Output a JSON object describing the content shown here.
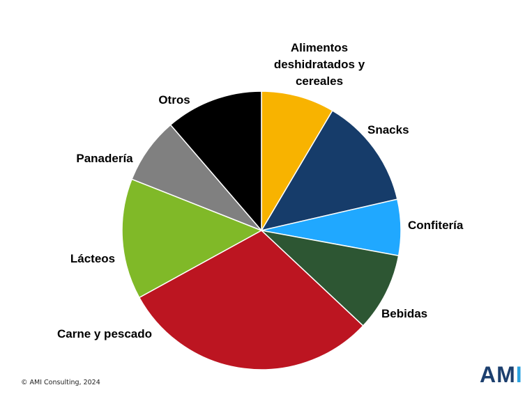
{
  "chart_data": {
    "type": "pie",
    "title": "",
    "start_angle_deg": 0,
    "direction": "clockwise",
    "slices": [
      {
        "label_lines": [
          "Alimentos",
          "deshidratados y",
          "cereales"
        ],
        "value": 8.5,
        "color": "#f8b300"
      },
      {
        "label_lines": [
          "Snacks"
        ],
        "value": 12.9,
        "color": "#163c6a"
      },
      {
        "label_lines": [
          "Confitería"
        ],
        "value": 6.5,
        "color": "#20a8ff"
      },
      {
        "label_lines": [
          "Bebidas"
        ],
        "value": 9.1,
        "color": "#2d5633"
      },
      {
        "label_lines": [
          "Carne y pescado"
        ],
        "value": 30.0,
        "color": "#bc1521"
      },
      {
        "label_lines": [
          "Lácteos"
        ],
        "value": 14.0,
        "color": "#80b928"
      },
      {
        "label_lines": [
          "Panadería"
        ],
        "value": 7.7,
        "color": "#808080"
      },
      {
        "label_lines": [
          "Otros"
        ],
        "value": 11.3,
        "color": "#000000"
      }
    ]
  },
  "footer": {
    "copyright": "© AMI Consulting, 2024",
    "logo_main": "AM",
    "logo_accent": "I"
  }
}
